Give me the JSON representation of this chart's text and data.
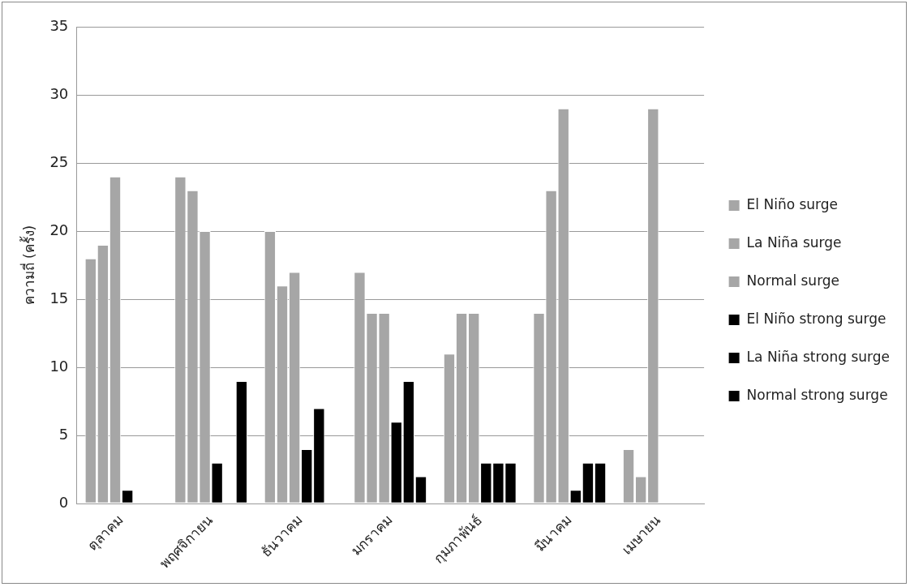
{
  "chart_data": {
    "type": "bar",
    "ylabel": "ความถี่ (ครั้ง)",
    "categories": [
      "ตุลาคม",
      "พฤศจิกายน",
      "ธันวาคม",
      "มกราคม",
      "กุมภาพันธ์",
      "มีนาคม",
      "เมษายน"
    ],
    "series": [
      {
        "name": "El Niño surge",
        "color": "#a6a6a6",
        "values": [
          18,
          24,
          20,
          17,
          11,
          14,
          4
        ]
      },
      {
        "name": "La Niña surge",
        "color": "#a6a6a6",
        "values": [
          19,
          23,
          16,
          14,
          14,
          23,
          2
        ]
      },
      {
        "name": "Normal surge",
        "color": "#a6a6a6",
        "values": [
          24,
          20,
          17,
          14,
          14,
          29,
          29
        ]
      },
      {
        "name": "El Niño strong surge",
        "color": "#000000",
        "values": [
          1,
          3,
          4,
          6,
          3,
          1,
          0
        ]
      },
      {
        "name": "La Niña strong surge",
        "color": "#000000",
        "values": [
          0,
          0,
          7,
          9,
          3,
          3,
          0
        ]
      },
      {
        "name": "Normal strong surge",
        "color": "#000000",
        "values": [
          0,
          9,
          0,
          2,
          3,
          3,
          0
        ]
      }
    ],
    "ylim": [
      0,
      35
    ],
    "yticks": [
      0,
      5,
      10,
      15,
      20,
      25,
      30,
      35
    ],
    "grid": "y",
    "legend": "right"
  }
}
